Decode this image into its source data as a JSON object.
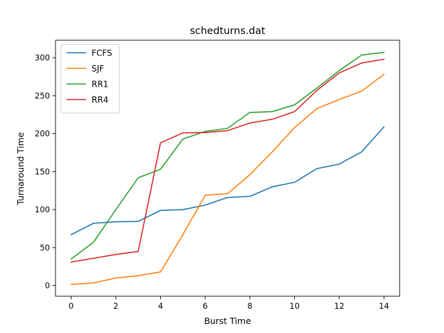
{
  "chart_data": {
    "type": "line",
    "title": "schedturns.dat",
    "xlabel": "Burst Time",
    "ylabel": "Turnaround Time",
    "xlim": [
      -0.7,
      14.7
    ],
    "ylim": [
      -14,
      323
    ],
    "xticks": [
      0,
      2,
      4,
      6,
      8,
      10,
      12,
      14
    ],
    "yticks": [
      0,
      50,
      100,
      150,
      200,
      250,
      300
    ],
    "grid": false,
    "legend_position": "top-left",
    "x": [
      0,
      1,
      2,
      3,
      4,
      5,
      6,
      7,
      8,
      9,
      10,
      11,
      12,
      13,
      14
    ],
    "series": [
      {
        "name": "FCFS",
        "color": "#1f77b4",
        "values": [
          67,
          82,
          84,
          84.5,
          99,
          100,
          106,
          116,
          117.5,
          130,
          136,
          154,
          160,
          176,
          209
        ]
      },
      {
        "name": "SJF",
        "color": "#ff7f0e",
        "values": [
          1.5,
          3.5,
          10,
          13,
          18,
          67,
          119,
          121,
          146,
          176,
          208,
          233,
          245,
          256,
          278
        ]
      },
      {
        "name": "RR1",
        "color": "#2ca02c",
        "values": [
          35,
          57,
          100,
          142,
          153,
          193,
          203,
          207,
          228,
          229,
          238,
          260,
          283,
          303.5,
          307
        ]
      },
      {
        "name": "RR4",
        "color": "#d62728",
        "values": [
          31,
          36,
          41,
          45,
          188,
          201,
          201.5,
          204,
          214,
          219,
          229,
          257,
          280,
          293,
          298
        ]
      }
    ]
  }
}
